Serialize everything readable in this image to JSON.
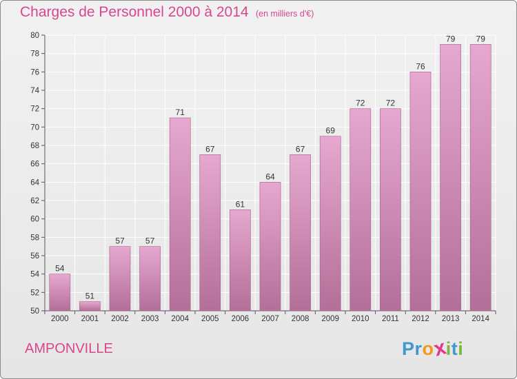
{
  "header": {
    "title": "Charges de Personnel 2000 à 2014",
    "subtitle": "(en milliers d'€)"
  },
  "footer": {
    "commune": "AMPONVILLE",
    "logo": "Proxiti",
    "logo_letters": [
      "P",
      "r",
      "o",
      "x",
      "i",
      "t",
      "i"
    ]
  },
  "colors": {
    "title": "#d9468e",
    "bar_top": "#e6a8cf",
    "bar_bottom": "#b36f98",
    "logo": [
      "#3d9ad1",
      "#3d9ad1",
      "#f29a1d",
      "#e8338c",
      "#7ab640",
      "#3d9ad1",
      "#7ab640"
    ]
  },
  "chart_data": {
    "type": "bar",
    "title": "Charges de Personnel 2000 à 2014",
    "subtitle": "(en milliers d'€)",
    "categories": [
      "2000",
      "2001",
      "2002",
      "2003",
      "2004",
      "2005",
      "2006",
      "2007",
      "2008",
      "2009",
      "2010",
      "2011",
      "2012",
      "2013",
      "2014"
    ],
    "values": [
      54,
      51,
      57,
      57,
      71,
      67,
      61,
      64,
      67,
      69,
      72,
      72,
      76,
      79,
      79
    ],
    "ylim": [
      50,
      80
    ],
    "yticks": [
      50,
      52,
      54,
      56,
      58,
      60,
      62,
      64,
      66,
      68,
      70,
      72,
      74,
      76,
      78,
      80
    ],
    "grid": true,
    "data_labels": true
  }
}
